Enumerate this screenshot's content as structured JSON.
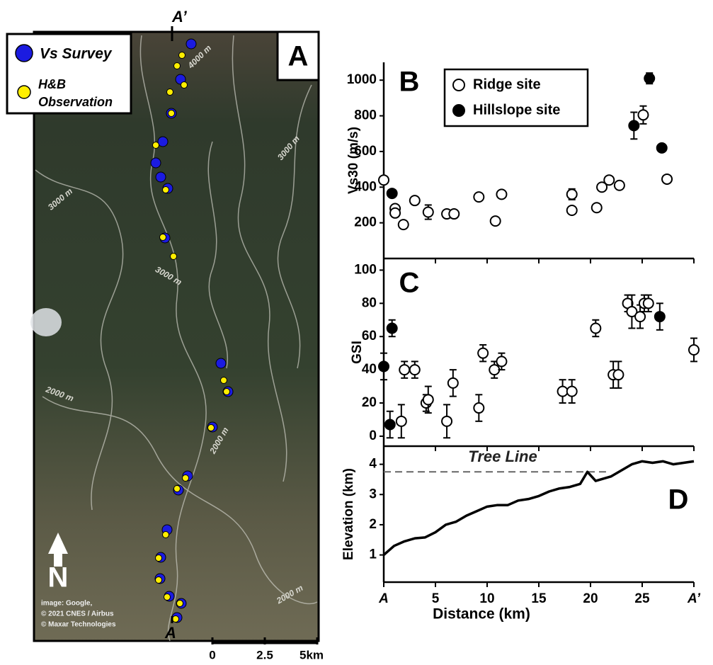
{
  "map": {
    "top_label": "A’",
    "bottom_label": "A",
    "panel": "A",
    "legend": {
      "vs_survey": "Vs Survey",
      "hb_line1": "H&B",
      "hb_line2": "Observation"
    },
    "contour_labels": [
      "4000 m",
      "3000 m",
      "3000 m",
      "3000 m",
      "2000 m",
      "2000 m",
      "2000 m"
    ],
    "credit": [
      "image: Google,",
      "© 2021 CNES / Airbus",
      "© Maxar Technologies"
    ],
    "north": "N",
    "scale_labels": [
      "0",
      "2.5",
      "5km"
    ]
  },
  "chart_data": [
    {
      "type": "scatter",
      "panel": "B",
      "y_label": "Vs30 (m/s)",
      "xlim": [
        0,
        30
      ],
      "ylim": [
        0,
        1100
      ],
      "yticks": [
        200,
        400,
        600,
        800,
        1000
      ],
      "legend": "top",
      "series": [
        {
          "name": "Ridge site",
          "color": "#ffffff",
          "x": [
            0,
            1.1,
            1.1,
            1.9,
            3.0,
            4.3,
            6.1,
            6.8,
            9.2,
            10.8,
            11.4,
            18.2,
            18.2,
            20.6,
            21.1,
            21.8,
            22.8,
            25.1,
            27.4
          ],
          "values": [
            440,
            280,
            255,
            190,
            325,
            260,
            250,
            250,
            345,
            210,
            360,
            360,
            270,
            285,
            400,
            440,
            410,
            805,
            445
          ],
          "errors": [
            10,
            10,
            10,
            10,
            10,
            40,
            10,
            10,
            10,
            10,
            10,
            30,
            10,
            10,
            10,
            10,
            10,
            50,
            10
          ]
        },
        {
          "name": "Hillslope site",
          "color": "#000000",
          "x": [
            0.8,
            24.2,
            25.7,
            26.9
          ],
          "values": [
            365,
            745,
            1010,
            620
          ],
          "errors": [
            10,
            75,
            30,
            10
          ]
        }
      ]
    },
    {
      "type": "scatter",
      "panel": "C",
      "y_label": "GSI",
      "xlim": [
        0,
        30
      ],
      "ylim": [
        -6,
        107
      ],
      "yticks": [
        0,
        20,
        40,
        60,
        80,
        100
      ],
      "series": [
        {
          "name": "Ridge site",
          "color": "#ffffff",
          "x": [
            1.7,
            2.0,
            3.0,
            4.1,
            4.3,
            6.1,
            6.7,
            9.2,
            9.6,
            10.7,
            11.4,
            17.3,
            18.2,
            20.5,
            22.2,
            22.7,
            23.6,
            24.0,
            24.8,
            25.2,
            25.6,
            30
          ],
          "values": [
            9,
            40,
            40,
            20,
            22,
            9,
            32,
            17,
            50,
            40,
            45,
            27,
            27,
            65,
            37,
            37,
            80,
            75,
            72,
            80,
            80,
            52
          ],
          "errors": [
            10,
            5,
            5,
            5,
            8,
            10,
            8,
            8,
            5,
            5,
            5,
            7,
            7,
            5,
            8,
            8,
            5,
            10,
            7,
            5,
            5,
            7
          ]
        },
        {
          "name": "Hillslope site",
          "color": "#000000",
          "x": [
            0,
            0.6,
            0.8,
            26.7
          ],
          "values": [
            42,
            7,
            65,
            72
          ],
          "errors": [
            8,
            8,
            5,
            8
          ]
        }
      ]
    },
    {
      "type": "line",
      "panel": "D",
      "x_label": "Distance (km)",
      "y_label": "Elevation (km)",
      "xlim": [
        0,
        30
      ],
      "ylim": [
        0.1,
        4.6
      ],
      "xticks": [
        {
          "value": 0,
          "label": "A"
        },
        5,
        10,
        15,
        20,
        25,
        {
          "value": 30,
          "label": "A’"
        }
      ],
      "yticks": [
        1,
        2,
        3,
        4
      ],
      "annotation": {
        "label": "Tree Line",
        "value": 3.75
      },
      "series": [
        {
          "color": "#000000",
          "x": [
            0,
            1,
            2,
            3,
            4,
            5,
            6,
            7,
            8,
            9,
            10,
            11,
            12,
            13,
            14,
            15,
            16,
            17,
            18,
            19,
            19.7,
            20.5,
            21,
            22,
            23,
            24,
            25,
            26,
            27,
            28,
            29,
            30
          ],
          "values": [
            1.0,
            1.3,
            1.45,
            1.55,
            1.58,
            1.75,
            2.0,
            2.1,
            2.3,
            2.45,
            2.6,
            2.65,
            2.65,
            2.8,
            2.85,
            2.95,
            3.1,
            3.2,
            3.25,
            3.35,
            3.75,
            3.45,
            3.5,
            3.6,
            3.8,
            4.0,
            4.1,
            4.05,
            4.1,
            4.0,
            4.05,
            4.1
          ]
        }
      ]
    }
  ]
}
